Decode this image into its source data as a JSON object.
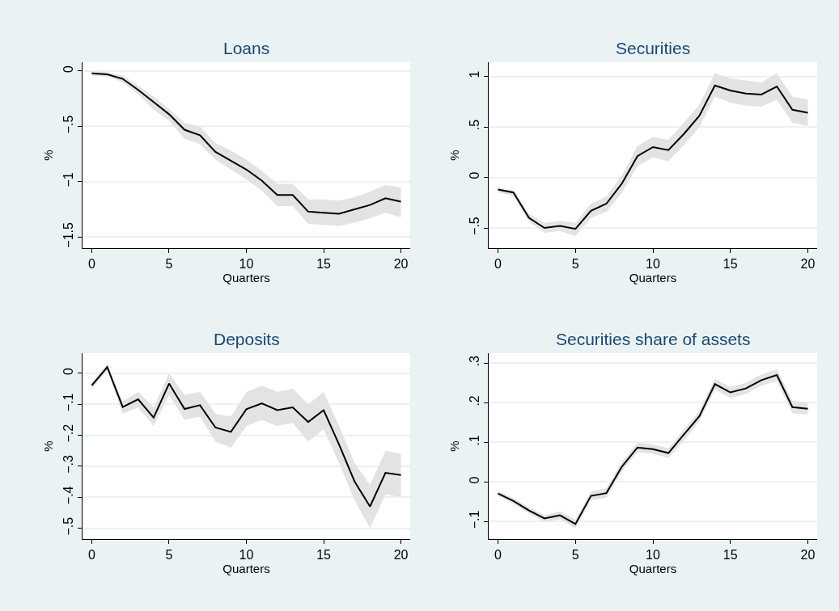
{
  "chart_data": [
    {
      "type": "line",
      "title": "Loans",
      "xlabel": "Quarters",
      "ylabel": "%",
      "grid": "y",
      "x": [
        0,
        1,
        2,
        3,
        4,
        5,
        6,
        7,
        8,
        9,
        10,
        11,
        12,
        13,
        14,
        15,
        16,
        17,
        18,
        19,
        20
      ],
      "series": [
        {
          "color": "#000000",
          "values": [
            -0.02,
            -0.03,
            -0.07,
            -0.17,
            -0.28,
            -0.39,
            -0.53,
            -0.58,
            -0.73,
            -0.81,
            -0.89,
            -0.99,
            -1.12,
            -1.12,
            -1.27,
            -1.28,
            -1.29,
            -1.25,
            -1.21,
            -1.15,
            -1.18
          ],
          "lower": [
            -0.04,
            -0.05,
            -0.1,
            -0.21,
            -0.35,
            -0.45,
            -0.61,
            -0.66,
            -0.8,
            -0.89,
            -0.98,
            -1.08,
            -1.22,
            -1.22,
            -1.38,
            -1.39,
            -1.4,
            -1.37,
            -1.33,
            -1.28,
            -1.32
          ],
          "upper": [
            0.0,
            -0.01,
            -0.04,
            -0.13,
            -0.23,
            -0.34,
            -0.47,
            -0.5,
            -0.65,
            -0.72,
            -0.8,
            -0.9,
            -1.02,
            -1.02,
            -1.16,
            -1.16,
            -1.17,
            -1.14,
            -1.09,
            -1.03,
            -1.05
          ]
        }
      ],
      "xlim": [
        -0.6,
        20.6
      ],
      "xticks": [
        0,
        5,
        10,
        15,
        20
      ],
      "ylim": [
        -1.6,
        0.08
      ],
      "yticks": [
        0,
        {
          "value": -0.5,
          "label": "−.5"
        },
        {
          "value": -1,
          "label": "−1"
        },
        {
          "value": -1.5,
          "label": "−1.5"
        }
      ]
    },
    {
      "type": "line",
      "title": "Securities",
      "xlabel": "Quarters",
      "ylabel": "%",
      "grid": "y",
      "x": [
        0,
        1,
        2,
        3,
        4,
        5,
        6,
        7,
        8,
        9,
        10,
        11,
        12,
        13,
        14,
        15,
        16,
        17,
        18,
        19,
        20
      ],
      "series": [
        {
          "color": "#000000",
          "values": [
            -0.12,
            -0.15,
            -0.4,
            -0.5,
            -0.48,
            -0.51,
            -0.33,
            -0.26,
            -0.06,
            0.21,
            0.3,
            0.27,
            0.43,
            0.61,
            0.91,
            0.86,
            0.83,
            0.82,
            0.9,
            0.67,
            0.64
          ],
          "lower": [
            -0.15,
            -0.18,
            -0.44,
            -0.55,
            -0.53,
            -0.58,
            -0.4,
            -0.34,
            -0.15,
            0.11,
            0.2,
            0.16,
            0.32,
            0.5,
            0.8,
            0.74,
            0.71,
            0.7,
            0.77,
            0.54,
            0.51
          ],
          "upper": [
            -0.1,
            -0.13,
            -0.36,
            -0.45,
            -0.43,
            -0.45,
            -0.26,
            -0.19,
            0.02,
            0.31,
            0.4,
            0.37,
            0.54,
            0.72,
            1.03,
            0.98,
            0.96,
            0.94,
            1.03,
            0.8,
            0.77
          ]
        }
      ],
      "xlim": [
        -0.6,
        20.6
      ],
      "xticks": [
        0,
        5,
        10,
        15,
        20
      ],
      "ylim": [
        -0.7,
        1.14
      ],
      "yticks": [
        {
          "value": -0.5,
          "label": "−.5"
        },
        0,
        {
          "value": 0.5,
          "label": ".5"
        },
        1
      ]
    },
    {
      "type": "line",
      "title": "Deposits",
      "xlabel": "Quarters",
      "ylabel": "%",
      "grid": "y",
      "x": [
        0,
        1,
        2,
        3,
        4,
        5,
        6,
        7,
        8,
        9,
        10,
        11,
        12,
        13,
        14,
        15,
        16,
        17,
        18,
        19,
        20
      ],
      "series": [
        {
          "color": "#000000",
          "values": [
            -0.039,
            0.02,
            -0.109,
            -0.084,
            -0.143,
            -0.033,
            -0.115,
            -0.103,
            -0.175,
            -0.189,
            -0.116,
            -0.097,
            -0.119,
            -0.11,
            -0.157,
            -0.119,
            -0.23,
            -0.349,
            -0.43,
            -0.321,
            -0.328
          ],
          "lower": [
            -0.05,
            0.01,
            -0.13,
            -0.11,
            -0.17,
            -0.07,
            -0.15,
            -0.14,
            -0.22,
            -0.24,
            -0.17,
            -0.15,
            -0.17,
            -0.16,
            -0.22,
            -0.18,
            -0.29,
            -0.41,
            -0.5,
            -0.39,
            -0.4
          ],
          "upper": [
            -0.03,
            0.03,
            -0.09,
            -0.06,
            -0.11,
            0.0,
            -0.07,
            -0.06,
            -0.13,
            -0.14,
            -0.06,
            -0.04,
            -0.06,
            -0.05,
            -0.1,
            -0.06,
            -0.17,
            -0.29,
            -0.36,
            -0.25,
            -0.26
          ]
        }
      ],
      "xlim": [
        -0.6,
        20.6
      ],
      "xticks": [
        0,
        5,
        10,
        15,
        20
      ],
      "ylim": [
        -0.535,
        0.065
      ],
      "yticks": [
        0,
        {
          "value": -0.1,
          "label": "−.1"
        },
        {
          "value": -0.2,
          "label": "−.2"
        },
        {
          "value": -0.3,
          "label": "−.3"
        },
        {
          "value": -0.4,
          "label": "−.4"
        },
        {
          "value": -0.5,
          "label": "−.5"
        }
      ]
    },
    {
      "type": "line",
      "title": "Securities share of assets",
      "xlabel": "Quarters",
      "ylabel": "%",
      "grid": "y",
      "x": [
        0,
        1,
        2,
        3,
        4,
        5,
        6,
        7,
        8,
        9,
        10,
        11,
        12,
        13,
        14,
        15,
        16,
        17,
        18,
        19,
        20
      ],
      "series": [
        {
          "color": "#000000",
          "values": [
            -0.029,
            -0.048,
            -0.072,
            -0.092,
            -0.084,
            -0.106,
            -0.035,
            -0.028,
            0.039,
            0.087,
            0.083,
            0.073,
            0.12,
            0.166,
            0.247,
            0.226,
            0.236,
            0.257,
            0.27,
            0.189,
            0.185
          ],
          "lower": [
            -0.035,
            -0.055,
            -0.08,
            -0.1,
            -0.094,
            -0.117,
            -0.046,
            -0.04,
            0.027,
            0.075,
            0.071,
            0.061,
            0.104,
            0.153,
            0.233,
            0.212,
            0.222,
            0.243,
            0.255,
            0.173,
            0.17
          ],
          "upper": [
            -0.023,
            -0.041,
            -0.064,
            -0.084,
            -0.074,
            -0.095,
            -0.024,
            -0.016,
            0.051,
            0.099,
            0.095,
            0.085,
            0.133,
            0.179,
            0.261,
            0.24,
            0.25,
            0.271,
            0.285,
            0.205,
            0.2
          ]
        }
      ],
      "xlim": [
        -0.6,
        20.6
      ],
      "xticks": [
        0,
        5,
        10,
        15,
        20
      ],
      "ylim": [
        -0.144,
        0.325
      ],
      "yticks": [
        {
          "value": -0.1,
          "label": "−.1"
        },
        0,
        {
          "value": 0.1,
          "label": ".1"
        },
        {
          "value": 0.2,
          "label": ".2"
        },
        {
          "value": 0.3,
          "label": ".3"
        }
      ]
    }
  ]
}
